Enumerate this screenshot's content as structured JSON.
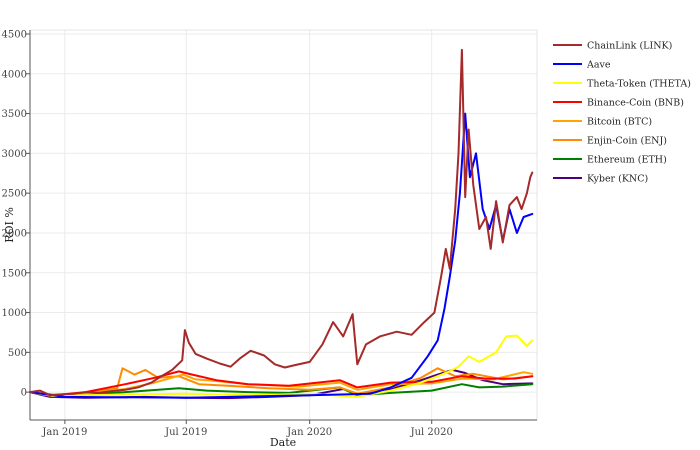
{
  "chart_data": {
    "type": "line",
    "title": "",
    "xlabel": "Date",
    "ylabel": "ROI %",
    "xlim": [
      "2018-11-10",
      "2020-12-05"
    ],
    "ylim": [
      -350,
      4550
    ],
    "grid": true,
    "legend_placement": "right",
    "x_ticks": [
      {
        "date": "2019-01-01",
        "label": "Jan 2019"
      },
      {
        "date": "2019-07-01",
        "label": "Jul 2019"
      },
      {
        "date": "2020-01-01",
        "label": "Jan 2020"
      },
      {
        "date": "2020-07-01",
        "label": "Jul 2020"
      }
    ],
    "y_ticks": [
      0,
      500,
      1000,
      1500,
      2000,
      2500,
      3000,
      3500,
      4000,
      4500
    ],
    "series": [
      {
        "name": "ChainLink (LINK)",
        "color": "#a52a2a",
        "points": [
          [
            "2018-11-10",
            0
          ],
          [
            "2018-11-25",
            20
          ],
          [
            "2018-12-10",
            -40
          ],
          [
            "2018-12-25",
            -30
          ],
          [
            "2019-01-15",
            -20
          ],
          [
            "2019-02-01",
            0
          ],
          [
            "2019-02-20",
            -10
          ],
          [
            "2019-03-10",
            10
          ],
          [
            "2019-04-01",
            30
          ],
          [
            "2019-04-20",
            60
          ],
          [
            "2019-05-10",
            120
          ],
          [
            "2019-05-25",
            200
          ],
          [
            "2019-06-10",
            280
          ],
          [
            "2019-06-25",
            400
          ],
          [
            "2019-06-29",
            780
          ],
          [
            "2019-07-05",
            620
          ],
          [
            "2019-07-15",
            480
          ],
          [
            "2019-08-01",
            420
          ],
          [
            "2019-08-20",
            360
          ],
          [
            "2019-09-05",
            320
          ],
          [
            "2019-09-20",
            430
          ],
          [
            "2019-10-05",
            520
          ],
          [
            "2019-10-25",
            460
          ],
          [
            "2019-11-10",
            350
          ],
          [
            "2019-11-25",
            310
          ],
          [
            "2019-12-10",
            340
          ],
          [
            "2020-01-01",
            380
          ],
          [
            "2020-01-20",
            600
          ],
          [
            "2020-02-05",
            880
          ],
          [
            "2020-02-20",
            700
          ],
          [
            "2020-03-05",
            980
          ],
          [
            "2020-03-12",
            350
          ],
          [
            "2020-03-25",
            600
          ],
          [
            "2020-04-15",
            700
          ],
          [
            "2020-05-10",
            760
          ],
          [
            "2020-06-01",
            720
          ],
          [
            "2020-06-20",
            880
          ],
          [
            "2020-07-05",
            1000
          ],
          [
            "2020-07-15",
            1450
          ],
          [
            "2020-07-22",
            1800
          ],
          [
            "2020-07-28",
            1550
          ],
          [
            "2020-08-05",
            2300
          ],
          [
            "2020-08-10",
            3000
          ],
          [
            "2020-08-15",
            4300
          ],
          [
            "2020-08-20",
            2450
          ],
          [
            "2020-08-25",
            3300
          ],
          [
            "2020-09-01",
            2600
          ],
          [
            "2020-09-10",
            2050
          ],
          [
            "2020-09-20",
            2200
          ],
          [
            "2020-09-27",
            1800
          ],
          [
            "2020-10-05",
            2400
          ],
          [
            "2020-10-15",
            1880
          ],
          [
            "2020-10-25",
            2350
          ],
          [
            "2020-11-05",
            2450
          ],
          [
            "2020-11-12",
            2300
          ],
          [
            "2020-11-20",
            2500
          ],
          [
            "2020-11-25",
            2700
          ],
          [
            "2020-11-28",
            2760
          ]
        ]
      },
      {
        "name": "Aave",
        "color": "#0000ff",
        "points": [
          [
            "2018-11-10",
            0
          ],
          [
            "2019-01-01",
            -60
          ],
          [
            "2019-07-01",
            -70
          ],
          [
            "2020-01-01",
            -40
          ],
          [
            "2020-04-01",
            -20
          ],
          [
            "2020-05-01",
            60
          ],
          [
            "2020-06-01",
            180
          ],
          [
            "2020-06-25",
            450
          ],
          [
            "2020-07-10",
            650
          ],
          [
            "2020-07-20",
            1050
          ],
          [
            "2020-07-28",
            1450
          ],
          [
            "2020-08-05",
            1900
          ],
          [
            "2020-08-12",
            2500
          ],
          [
            "2020-08-20",
            3500
          ],
          [
            "2020-08-27",
            2700
          ],
          [
            "2020-09-05",
            3000
          ],
          [
            "2020-09-15",
            2300
          ],
          [
            "2020-09-25",
            2050
          ],
          [
            "2020-10-05",
            2350
          ],
          [
            "2020-10-15",
            1900
          ],
          [
            "2020-10-25",
            2300
          ],
          [
            "2020-11-05",
            2000
          ],
          [
            "2020-11-15",
            2200
          ],
          [
            "2020-11-28",
            2240
          ]
        ]
      },
      {
        "name": "Theta-Token (THETA)",
        "color": "#ffff00",
        "points": [
          [
            "2018-11-10",
            0
          ],
          [
            "2018-12-15",
            -50
          ],
          [
            "2019-02-01",
            -40
          ],
          [
            "2019-04-01",
            -30
          ],
          [
            "2019-07-01",
            -20
          ],
          [
            "2019-10-01",
            -40
          ],
          [
            "2020-01-01",
            -20
          ],
          [
            "2020-03-12",
            -60
          ],
          [
            "2020-05-01",
            20
          ],
          [
            "2020-06-15",
            120
          ],
          [
            "2020-07-10",
            200
          ],
          [
            "2020-07-25",
            250
          ],
          [
            "2020-08-10",
            320
          ],
          [
            "2020-08-25",
            450
          ],
          [
            "2020-09-10",
            380
          ],
          [
            "2020-10-05",
            500
          ],
          [
            "2020-10-20",
            700
          ],
          [
            "2020-11-05",
            710
          ],
          [
            "2020-11-20",
            580
          ],
          [
            "2020-11-28",
            650
          ]
        ]
      },
      {
        "name": "Binance-Coin (BNB)",
        "color": "#ff0000",
        "points": [
          [
            "2018-11-10",
            0
          ],
          [
            "2018-12-15",
            -40
          ],
          [
            "2019-02-01",
            0
          ],
          [
            "2019-04-01",
            100
          ],
          [
            "2019-05-15",
            180
          ],
          [
            "2019-06-20",
            260
          ],
          [
            "2019-07-10",
            220
          ],
          [
            "2019-08-15",
            150
          ],
          [
            "2019-10-01",
            100
          ],
          [
            "2019-12-01",
            80
          ],
          [
            "2020-02-15",
            150
          ],
          [
            "2020-03-12",
            60
          ],
          [
            "2020-05-01",
            120
          ],
          [
            "2020-07-01",
            130
          ],
          [
            "2020-08-15",
            200
          ],
          [
            "2020-09-20",
            170
          ],
          [
            "2020-11-01",
            170
          ],
          [
            "2020-11-28",
            200
          ]
        ]
      },
      {
        "name": "Bitcoin (BTC)",
        "color": "#ffa500",
        "points": [
          [
            "2018-11-10",
            0
          ],
          [
            "2018-12-15",
            -30
          ],
          [
            "2019-02-01",
            -20
          ],
          [
            "2019-04-01",
            40
          ],
          [
            "2019-05-15",
            120
          ],
          [
            "2019-06-26",
            220
          ],
          [
            "2019-07-15",
            160
          ],
          [
            "2019-08-15",
            140
          ],
          [
            "2019-10-01",
            100
          ],
          [
            "2019-12-15",
            70
          ],
          [
            "2020-02-15",
            120
          ],
          [
            "2020-03-12",
            30
          ],
          [
            "2020-05-01",
            100
          ],
          [
            "2020-07-01",
            110
          ],
          [
            "2020-08-15",
            170
          ],
          [
            "2020-10-01",
            160
          ],
          [
            "2020-11-15",
            250
          ],
          [
            "2020-11-28",
            230
          ]
        ]
      },
      {
        "name": "Enjin-Coin (ENJ)",
        "color": "#ff8c00",
        "points": [
          [
            "2018-11-10",
            0
          ],
          [
            "2018-12-20",
            -40
          ],
          [
            "2019-02-01",
            -10
          ],
          [
            "2019-03-20",
            50
          ],
          [
            "2019-03-28",
            300
          ],
          [
            "2019-04-15",
            220
          ],
          [
            "2019-05-01",
            280
          ],
          [
            "2019-05-20",
            180
          ],
          [
            "2019-06-20",
            200
          ],
          [
            "2019-07-20",
            100
          ],
          [
            "2019-09-01",
            80
          ],
          [
            "2019-11-01",
            50
          ],
          [
            "2020-01-01",
            30
          ],
          [
            "2020-02-15",
            60
          ],
          [
            "2020-03-12",
            -20
          ],
          [
            "2020-05-01",
            60
          ],
          [
            "2020-06-15",
            180
          ],
          [
            "2020-07-10",
            300
          ],
          [
            "2020-08-05",
            200
          ],
          [
            "2020-09-01",
            230
          ],
          [
            "2020-10-15",
            160
          ],
          [
            "2020-11-28",
            200
          ]
        ]
      },
      {
        "name": "Ethereum (ETH)",
        "color": "#008000",
        "points": [
          [
            "2018-11-10",
            0
          ],
          [
            "2018-12-15",
            -40
          ],
          [
            "2019-02-01",
            -30
          ],
          [
            "2019-04-01",
            0
          ],
          [
            "2019-06-20",
            50
          ],
          [
            "2019-08-01",
            20
          ],
          [
            "2019-10-01",
            0
          ],
          [
            "2019-12-01",
            -10
          ],
          [
            "2020-02-15",
            60
          ],
          [
            "2020-03-12",
            -40
          ],
          [
            "2020-05-01",
            -10
          ],
          [
            "2020-07-01",
            20
          ],
          [
            "2020-08-15",
            100
          ],
          [
            "2020-09-10",
            60
          ],
          [
            "2020-10-15",
            70
          ],
          [
            "2020-11-28",
            100
          ]
        ]
      },
      {
        "name": "Kyber (KNC)",
        "color": "#4b0082",
        "points": [
          [
            "2018-11-10",
            0
          ],
          [
            "2018-12-10",
            -60
          ],
          [
            "2019-02-01",
            -70
          ],
          [
            "2019-05-01",
            -60
          ],
          [
            "2019-07-01",
            -70
          ],
          [
            "2019-09-01",
            -75
          ],
          [
            "2019-11-01",
            -60
          ],
          [
            "2020-01-01",
            -40
          ],
          [
            "2020-02-20",
            40
          ],
          [
            "2020-03-12",
            -20
          ],
          [
            "2020-05-01",
            40
          ],
          [
            "2020-06-15",
            150
          ],
          [
            "2020-07-10",
            220
          ],
          [
            "2020-08-01",
            280
          ],
          [
            "2020-08-20",
            240
          ],
          [
            "2020-09-15",
            150
          ],
          [
            "2020-10-15",
            100
          ],
          [
            "2020-11-28",
            110
          ]
        ]
      }
    ]
  }
}
